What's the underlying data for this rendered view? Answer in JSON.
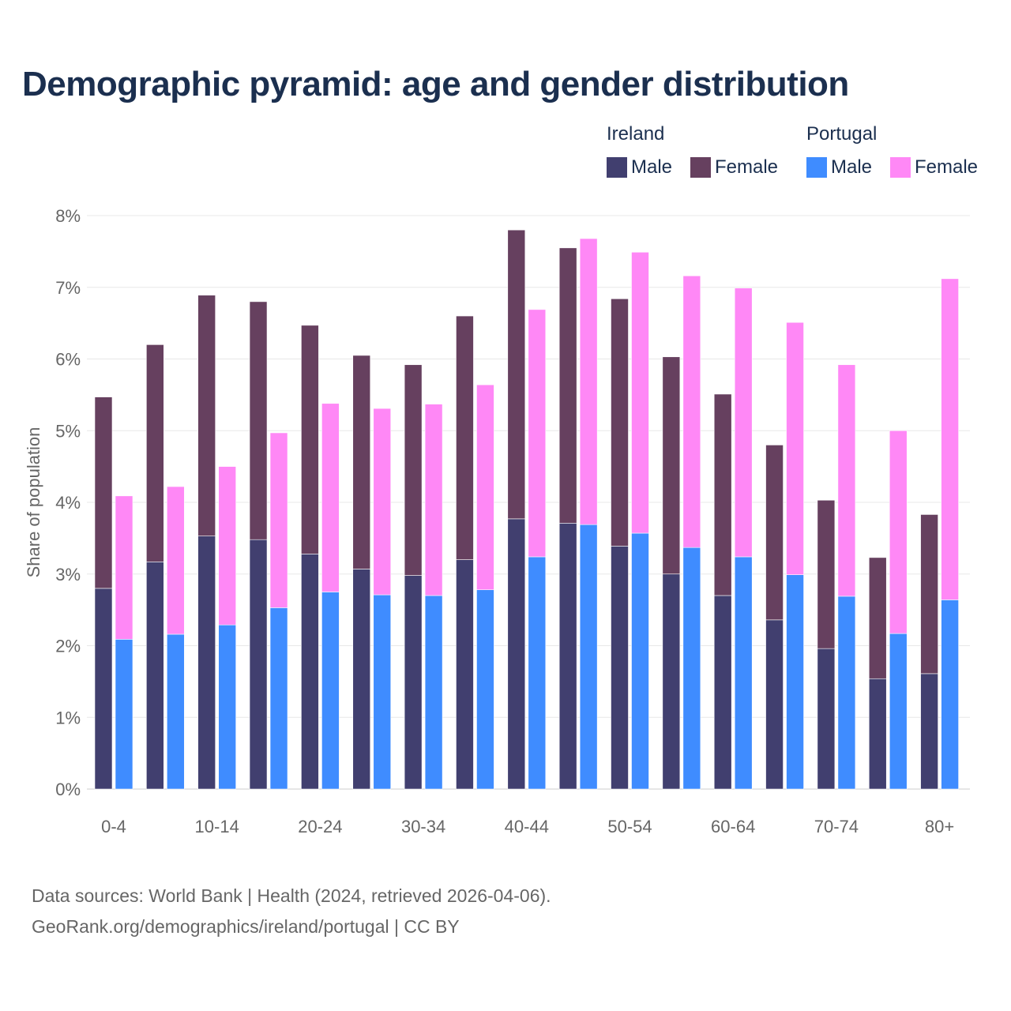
{
  "chart_data": {
    "type": "bar",
    "stacked": true,
    "title": "Demographic pyramid: age and gender distribution",
    "ylabel": "Share of population",
    "xlabel": "",
    "ylim": [
      0,
      8
    ],
    "yticks": [
      "0%",
      "1%",
      "2%",
      "3%",
      "4%",
      "5%",
      "6%",
      "7%",
      "8%"
    ],
    "grid": true,
    "legend_position": "top-right",
    "categories": [
      "0-4",
      "5-9",
      "10-14",
      "15-19",
      "20-24",
      "25-29",
      "30-34",
      "35-39",
      "40-44",
      "45-49",
      "50-54",
      "55-59",
      "60-64",
      "65-69",
      "70-74",
      "75-79",
      "80+"
    ],
    "xtick_labels_shown": [
      "0-4",
      "10-14",
      "20-24",
      "30-34",
      "40-44",
      "50-54",
      "60-64",
      "70-74",
      "80+"
    ],
    "countries": [
      {
        "name": "Ireland",
        "series": [
          {
            "name": "Male",
            "color": "#413f6f",
            "values": [
              2.8,
              3.17,
              3.53,
              3.48,
              3.28,
              3.07,
              2.98,
              3.2,
              3.77,
              3.71,
              3.39,
              3.0,
              2.7,
              2.36,
              1.96,
              1.54,
              1.61
            ]
          },
          {
            "name": "Female",
            "color": "#66405f",
            "values": [
              2.67,
              3.03,
              3.36,
              3.32,
              3.19,
              2.98,
              2.94,
              3.4,
              4.03,
              3.84,
              3.45,
              3.03,
              2.81,
              2.44,
              2.07,
              1.69,
              2.22
            ]
          }
        ]
      },
      {
        "name": "Portugal",
        "series": [
          {
            "name": "Male",
            "color": "#3f8cff",
            "values": [
              2.09,
              2.16,
              2.29,
              2.53,
              2.75,
              2.71,
              2.7,
              2.78,
              3.24,
              3.69,
              3.57,
              3.37,
              3.24,
              2.99,
              2.69,
              2.17,
              2.64
            ]
          },
          {
            "name": "Female",
            "color": "#ff88f6",
            "values": [
              2.0,
              2.06,
              2.21,
              2.44,
              2.63,
              2.6,
              2.67,
              2.86,
              3.45,
              3.99,
              3.92,
              3.79,
              3.75,
              3.52,
              3.23,
              2.83,
              4.48
            ]
          }
        ]
      }
    ]
  },
  "footer": {
    "line1": "Data sources: World Bank | Health (2024, retrieved 2026-04-06).",
    "line2": "GeoRank.org/demographics/ireland/portugal | CC BY"
  }
}
